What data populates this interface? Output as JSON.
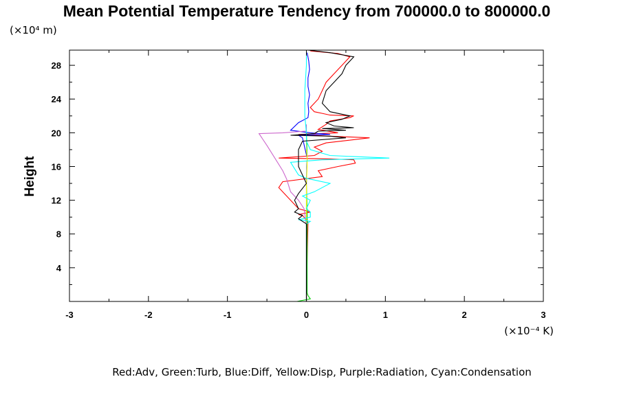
{
  "chart_data": {
    "type": "line",
    "title": "Mean Potential Temperature Tendency from 700000.0 to 800000.0",
    "ylabel": "Height",
    "y_scale_label": "(×10⁴ m)",
    "x_scale_label": "(×10⁻⁴ K)",
    "legend_text": "Red:Adv, Green:Turb, Blue:Diff, Yellow:Disp, Purple:Radiation, Cyan:Condensation",
    "xlim": [
      -3,
      3
    ],
    "ylim": [
      0,
      29.8
    ],
    "x_ticks": [
      -3,
      -2,
      -1,
      0,
      1,
      2,
      3
    ],
    "x_tick_labels": [
      "-3",
      "-2",
      "-1",
      "0",
      "1",
      "2",
      "3"
    ],
    "y_ticks": [
      4,
      8,
      12,
      16,
      20,
      24,
      28
    ],
    "y_tick_labels": [
      "4",
      "8",
      "12",
      "16",
      "20",
      "24",
      "28"
    ],
    "series": [
      {
        "name": "Adv",
        "color": "#ff0000",
        "points": [
          [
            0,
            0
          ],
          [
            0.01,
            5
          ],
          [
            0.02,
            9.4
          ],
          [
            -0.05,
            10.2
          ],
          [
            -0.1,
            10.3
          ],
          [
            0.05,
            10.6
          ],
          [
            -0.1,
            11
          ],
          [
            -0.35,
            13.5
          ],
          [
            -0.3,
            14.2
          ],
          [
            0.2,
            14.8
          ],
          [
            0.15,
            15.5
          ],
          [
            0.4,
            16
          ],
          [
            0.62,
            16.4
          ],
          [
            0.6,
            16.8
          ],
          [
            0.3,
            16.9
          ],
          [
            -0.35,
            17
          ],
          [
            0.1,
            17.3
          ],
          [
            0.2,
            17.8
          ],
          [
            0.1,
            18.3
          ],
          [
            0.25,
            18.8
          ],
          [
            0.8,
            19.4
          ],
          [
            0.3,
            19.6
          ],
          [
            -0.1,
            19.8
          ],
          [
            0.4,
            20
          ],
          [
            0.15,
            20.4
          ],
          [
            0.25,
            21
          ],
          [
            0.3,
            21.4
          ],
          [
            0.55,
            21.8
          ],
          [
            0.6,
            22
          ],
          [
            0.3,
            22.1
          ],
          [
            0.2,
            22.3
          ],
          [
            0.1,
            22.5
          ],
          [
            0.05,
            23
          ],
          [
            0.15,
            24
          ],
          [
            0.2,
            25
          ],
          [
            0.25,
            26
          ],
          [
            0.35,
            27
          ],
          [
            0.45,
            28
          ],
          [
            0.55,
            29
          ],
          [
            0.4,
            29.4
          ],
          [
            0.05,
            29.7
          ]
        ]
      },
      {
        "name": "Turb",
        "color": "#00cc00",
        "points": [
          [
            -0.12,
            0
          ],
          [
            0.05,
            0.3
          ],
          [
            0.02,
            0.7
          ],
          [
            0.01,
            1
          ],
          [
            0.01,
            5
          ],
          [
            0.01,
            10
          ],
          [
            0,
            14
          ],
          [
            0.01,
            17
          ],
          [
            0,
            20
          ]
        ]
      },
      {
        "name": "Diff",
        "color": "#0000ff",
        "points": [
          [
            0,
            0
          ],
          [
            0,
            5
          ],
          [
            0,
            10
          ],
          [
            0,
            14
          ],
          [
            0.01,
            17
          ],
          [
            -0.05,
            19.4
          ],
          [
            -0.1,
            19.7
          ],
          [
            0.3,
            19.8
          ],
          [
            0.05,
            20
          ],
          [
            -0.2,
            20.3
          ],
          [
            -0.1,
            21.2
          ],
          [
            0.02,
            21.8
          ],
          [
            0.03,
            22.5
          ],
          [
            0.02,
            23.5
          ],
          [
            0.04,
            24.5
          ],
          [
            0.02,
            25.5
          ],
          [
            0.02,
            26.5
          ],
          [
            0.04,
            27.5
          ],
          [
            0.03,
            28.5
          ],
          [
            0.01,
            29.5
          ]
        ]
      },
      {
        "name": "Disp",
        "color": "#ffff00",
        "points": [
          [
            0,
            0
          ],
          [
            0,
            5
          ],
          [
            0,
            10
          ],
          [
            0,
            14
          ],
          [
            0.01,
            16
          ],
          [
            0.01,
            17
          ],
          [
            0,
            18
          ]
        ]
      },
      {
        "name": "Radiation",
        "color": "#cc66cc",
        "points": [
          [
            0,
            0
          ],
          [
            0,
            5
          ],
          [
            0,
            9
          ],
          [
            -0.03,
            11
          ],
          [
            -0.1,
            12
          ],
          [
            -0.2,
            13
          ],
          [
            -0.25,
            14.5
          ],
          [
            -0.3,
            15.5
          ],
          [
            -0.4,
            17
          ],
          [
            -0.5,
            18.5
          ],
          [
            -0.6,
            19.9
          ],
          [
            -0.3,
            20
          ],
          [
            0,
            20.2
          ],
          [
            0,
            21
          ]
        ]
      },
      {
        "name": "Condensation",
        "color": "#00ffff",
        "points": [
          [
            0,
            0
          ],
          [
            0,
            5
          ],
          [
            0,
            9.2
          ],
          [
            0.05,
            9.5
          ],
          [
            -0.1,
            9.7
          ],
          [
            0.05,
            10
          ],
          [
            0.05,
            10.6
          ],
          [
            0,
            11
          ],
          [
            0.05,
            12
          ],
          [
            -0.05,
            12.5
          ],
          [
            0.1,
            13
          ],
          [
            0.3,
            14
          ],
          [
            0,
            14.6
          ],
          [
            -0.1,
            15
          ],
          [
            -0.2,
            16.5
          ],
          [
            0.2,
            16.8
          ],
          [
            1.05,
            17
          ],
          [
            0.3,
            17.3
          ],
          [
            0.05,
            18
          ],
          [
            0,
            19
          ],
          [
            0,
            20
          ],
          [
            -0.02,
            22
          ],
          [
            -0.02,
            25
          ],
          [
            0,
            28
          ],
          [
            0,
            29.7
          ]
        ]
      },
      {
        "name": "",
        "color": "#000000",
        "points": [
          [
            0,
            0
          ],
          [
            0,
            5
          ],
          [
            0,
            9.2
          ],
          [
            -0.1,
            9.8
          ],
          [
            -0.05,
            10.2
          ],
          [
            -0.15,
            10.6
          ],
          [
            -0.1,
            11
          ],
          [
            -0.15,
            12
          ],
          [
            -0.1,
            12.8
          ],
          [
            0,
            14
          ],
          [
            -0.1,
            16
          ],
          [
            -0.1,
            18
          ],
          [
            -0.05,
            19
          ],
          [
            0.5,
            19.4
          ],
          [
            0.3,
            19.6
          ],
          [
            -0.2,
            19.7
          ],
          [
            0.1,
            19.9
          ],
          [
            0.15,
            20.2
          ],
          [
            0.5,
            20.3
          ],
          [
            0.2,
            20.5
          ],
          [
            0.6,
            20.6
          ],
          [
            0.35,
            20.8
          ],
          [
            0.25,
            21.2
          ],
          [
            0.45,
            21.6
          ],
          [
            0.55,
            22
          ],
          [
            0.3,
            22.5
          ],
          [
            0.2,
            23.5
          ],
          [
            0.25,
            25
          ],
          [
            0.35,
            26
          ],
          [
            0.45,
            27
          ],
          [
            0.5,
            28
          ],
          [
            0.6,
            29
          ],
          [
            0.3,
            29.5
          ],
          [
            0.02,
            29.8
          ]
        ]
      }
    ]
  }
}
